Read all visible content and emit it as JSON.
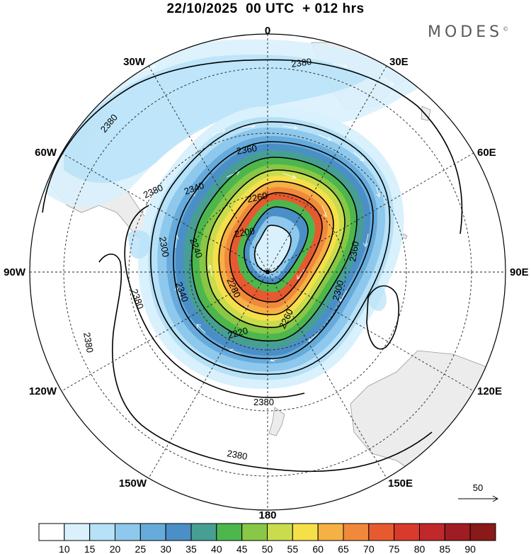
{
  "header": {
    "title": "22/10/2025  00 UTC  + 012 hrs",
    "brand": "MODES"
  },
  "map": {
    "projection": "south-polar-stereographic",
    "longitude_labels": {
      "top": "0",
      "bottom": "180",
      "left": "90W",
      "right": "90E",
      "upper_left_30": "30W",
      "upper_right_30": "30E",
      "upper_left_60": "60W",
      "upper_right_60": "60E",
      "lower_left_120": "120W",
      "lower_right_120": "120E",
      "lower_left_150": "150W",
      "lower_right_150": "150E"
    },
    "contour_labels": {
      "c2380_a": "2380",
      "c2380_b": "2380",
      "c2380_c": "2380",
      "c2380_d": "2380",
      "c2380_e": "2380",
      "c2380_f": "2380",
      "c2380_g": "2380",
      "c2360": "2360",
      "c2340_a": "2340",
      "c2340_b": "2340",
      "c2260_a": "2260",
      "c2260_b": "2260",
      "c2240": "2240",
      "c2220": "2220",
      "c2200": "2200",
      "c2280": "2280",
      "c2300_a": "2300",
      "c2300_b": "2300",
      "c2360_b": "2360"
    },
    "vector_reference": {
      "value": "50"
    }
  },
  "legend": {
    "levels": [
      "10",
      "15",
      "20",
      "25",
      "30",
      "35",
      "40",
      "45",
      "50",
      "55",
      "60",
      "65",
      "70",
      "75",
      "80",
      "85",
      "90"
    ],
    "colors": [
      "#ffffff",
      "#d9f1fc",
      "#b6e1f7",
      "#8ec8ec",
      "#66abdc",
      "#4a8fc6",
      "#479f94",
      "#4db74d",
      "#89c746",
      "#c9dc4e",
      "#f6e04a",
      "#f6b045",
      "#f08a3a",
      "#e75a2f",
      "#d83a2c",
      "#c0282b",
      "#9e1c22",
      "#8a1a1a"
    ]
  }
}
